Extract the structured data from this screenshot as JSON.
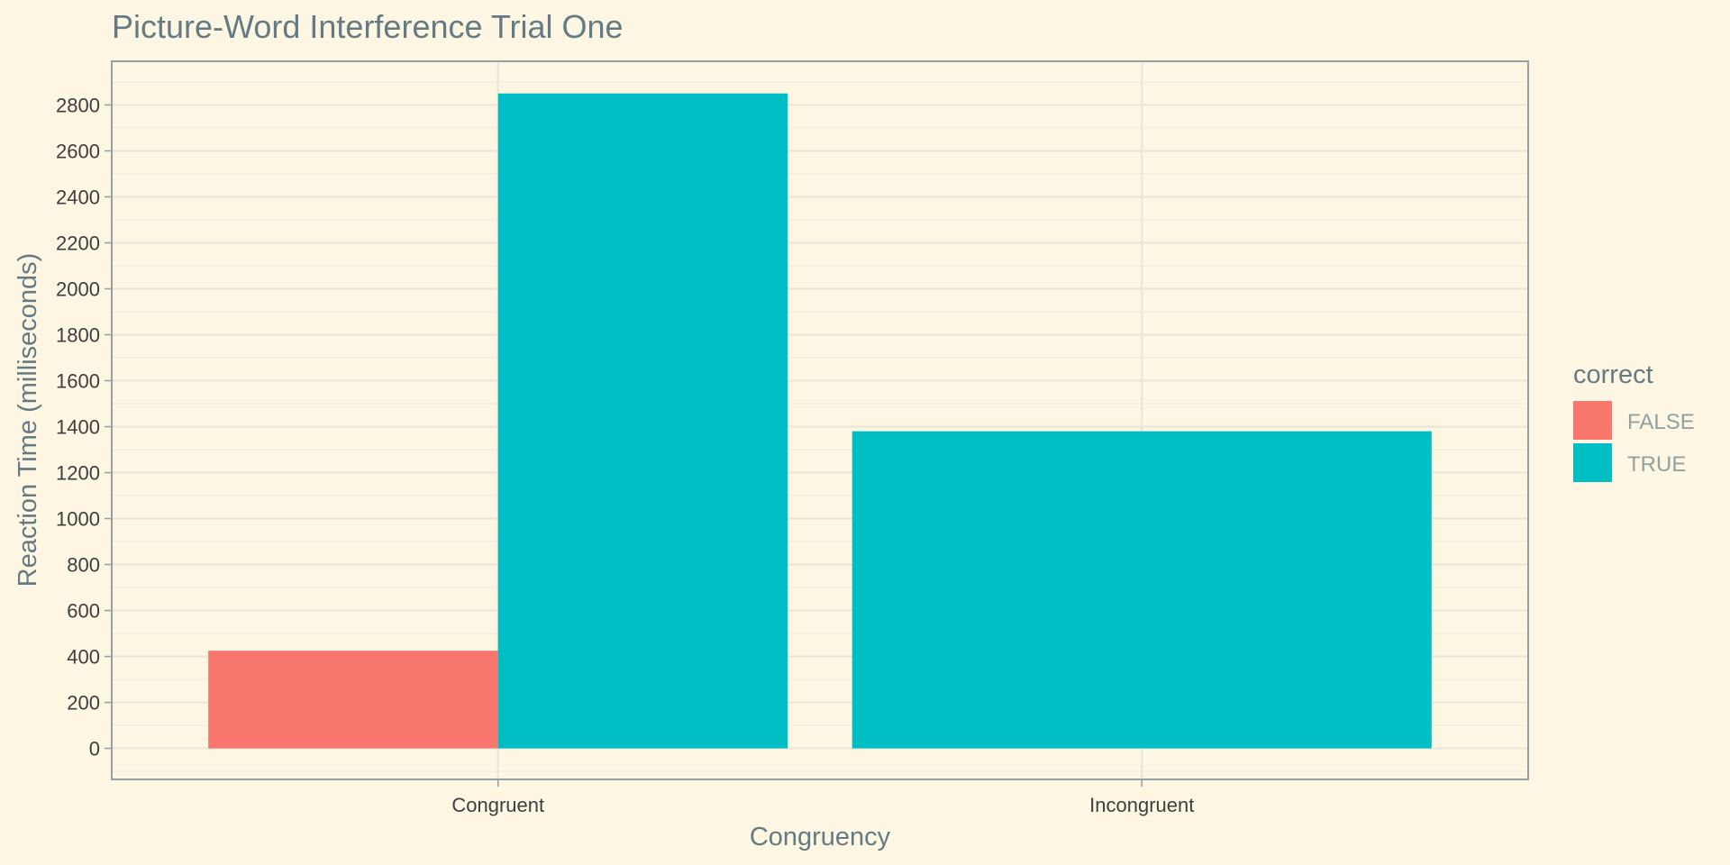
{
  "chart_data": {
    "type": "bar",
    "title": "Picture-Word Interference Trial One",
    "xlabel": "Congruency",
    "ylabel": "Reaction Time (milliseconds)",
    "categories": [
      "Congruent",
      "Incongruent"
    ],
    "series": [
      {
        "name": "FALSE",
        "values": [
          425,
          null
        ],
        "color": "#f8766d"
      },
      {
        "name": "TRUE",
        "values": [
          2850,
          1380
        ],
        "color": "#00bfc4"
      }
    ],
    "ylim": [
      -135,
      2990
    ],
    "yticks": [
      0,
      200,
      400,
      600,
      800,
      1000,
      1200,
      1400,
      1600,
      1800,
      2000,
      2200,
      2400,
      2600,
      2800
    ],
    "grid": true,
    "legend": {
      "title": "correct",
      "position": "right",
      "entries": [
        "FALSE",
        "TRUE"
      ]
    }
  }
}
